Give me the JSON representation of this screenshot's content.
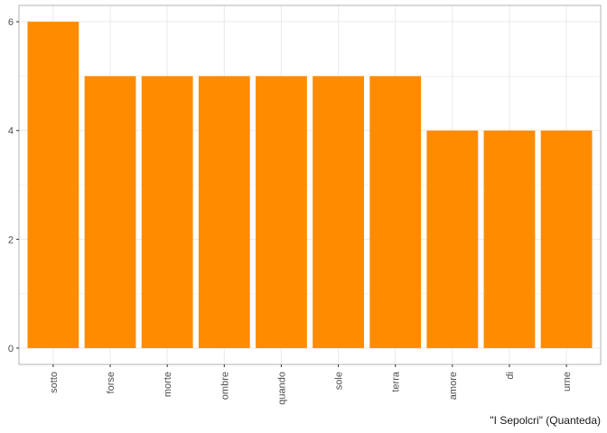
{
  "chart_data": {
    "type": "bar",
    "categories": [
      "sotto",
      "forse",
      "morte",
      "ombre",
      "quando",
      "sole",
      "terra",
      "amore",
      "di",
      "urne"
    ],
    "values": [
      6,
      5,
      5,
      5,
      5,
      5,
      5,
      4,
      4,
      4
    ],
    "title": "",
    "xlabel": "",
    "ylabel": "",
    "caption": "\"I Sepolcri\" (Quanteda)",
    "ylim": [
      -0.3,
      6.3
    ],
    "yticks": [
      0,
      2,
      4,
      6
    ],
    "grid": true,
    "legend": "none",
    "bar_color": "#FF8C00",
    "grid_color": "#ebebeb",
    "panel_border_color": "#b3b3b3"
  }
}
